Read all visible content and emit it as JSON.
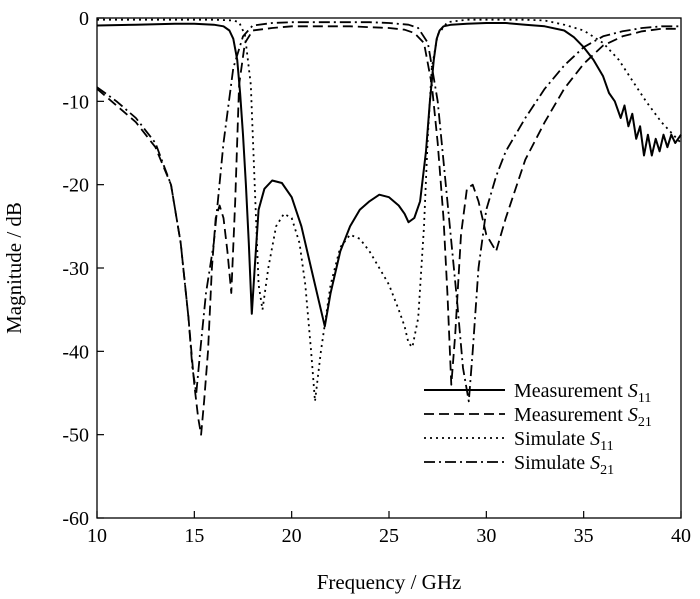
{
  "chart_data": {
    "type": "line",
    "xlabel": "Frequency / GHz",
    "ylabel": "Magnitude / dB",
    "xlim": [
      10,
      40
    ],
    "ylim": [
      -60,
      0
    ],
    "xticks": [
      "10",
      "15",
      "20",
      "25",
      "30",
      "35",
      "40"
    ],
    "yticks": [
      "0",
      "-10",
      "-20",
      "-30",
      "-40",
      "-50",
      "-60"
    ],
    "grid": false,
    "legend_position": "lower-right",
    "series": [
      {
        "name": "Measurement S11",
        "legend_text": "Measurement ",
        "legend_symbol": "S",
        "legend_sub": "11",
        "dash": "solid",
        "x": [
          10,
          12,
          14,
          15,
          16,
          16.5,
          16.8,
          17.0,
          17.2,
          17.35,
          17.5,
          17.65,
          17.8,
          17.95,
          18.1,
          18.3,
          18.6,
          19.0,
          19.5,
          20.0,
          20.5,
          21.0,
          21.4,
          21.7,
          22.0,
          22.5,
          23.0,
          23.5,
          24.0,
          24.5,
          25.0,
          25.5,
          25.8,
          26.0,
          26.3,
          26.6,
          26.9,
          27.1,
          27.3,
          27.45,
          27.6,
          27.8,
          28.2,
          29.0,
          30.0,
          31.0,
          32.0,
          33.0,
          34.0,
          34.5,
          35.0,
          35.5,
          36.0,
          36.3,
          36.6,
          36.9,
          37.1,
          37.3,
          37.5,
          37.7,
          37.9,
          38.1,
          38.3,
          38.5,
          38.7,
          38.9,
          39.1,
          39.3,
          39.5,
          39.7,
          40.0
        ],
        "y": [
          -0.9,
          -0.8,
          -0.7,
          -0.7,
          -0.8,
          -1.0,
          -1.5,
          -2.5,
          -5,
          -9,
          -14,
          -20,
          -27,
          -35.5,
          -30,
          -23,
          -20.5,
          -19.5,
          -19.8,
          -21.5,
          -25,
          -30,
          -34,
          -37,
          -33,
          -28,
          -25,
          -23,
          -22,
          -21.2,
          -21.5,
          -22.5,
          -23.5,
          -24.5,
          -24,
          -22,
          -16,
          -10,
          -5,
          -2.5,
          -1.5,
          -1.0,
          -0.8,
          -0.7,
          -0.6,
          -0.6,
          -0.8,
          -1.0,
          -1.5,
          -2.3,
          -3.5,
          -5,
          -7,
          -9,
          -10,
          -12,
          -10.5,
          -13,
          -11.5,
          -14.5,
          -13,
          -16.5,
          -14,
          -16.5,
          -14.5,
          -16,
          -14,
          -15.5,
          -14,
          -15,
          -14
        ]
      },
      {
        "name": "Measurement S21",
        "legend_text": "Measurement ",
        "legend_symbol": "S",
        "legend_sub": "21",
        "dash": "dashed",
        "x": [
          10,
          11,
          12,
          13,
          13.8,
          14.3,
          14.7,
          15.0,
          15.2,
          15.35,
          15.5,
          15.7,
          15.9,
          16.1,
          16.3,
          16.5,
          16.7,
          16.9,
          17.1,
          17.3,
          17.6,
          18.0,
          19.0,
          20.0,
          21.0,
          22.0,
          23.0,
          24.0,
          25.0,
          25.8,
          26.3,
          26.8,
          27.2,
          27.5,
          27.8,
          28.0,
          28.2,
          28.4,
          28.7,
          29.0,
          29.3,
          29.6,
          30.0,
          30.5,
          31.0,
          32.0,
          33.0,
          34.0,
          35.0,
          36.0,
          37.0,
          38.0,
          39.0,
          40.0
        ],
        "y": [
          -8.5,
          -10.5,
          -12.5,
          -15.5,
          -20,
          -27,
          -36,
          -44,
          -48,
          -50,
          -46,
          -40,
          -30,
          -24,
          -22.5,
          -24,
          -28,
          -33,
          -22,
          -8,
          -3,
          -1.5,
          -1.2,
          -1.0,
          -1.0,
          -1.0,
          -1.0,
          -1.1,
          -1.2,
          -1.4,
          -1.8,
          -3,
          -8,
          -15,
          -24,
          -33,
          -44,
          -38,
          -26,
          -20.5,
          -20,
          -22,
          -26,
          -28,
          -24,
          -17,
          -12.5,
          -8.5,
          -5.5,
          -3.3,
          -2.2,
          -1.6,
          -1.3,
          -1.3
        ]
      },
      {
        "name": "Simulate S11",
        "legend_text": "Simulate ",
        "legend_symbol": "S",
        "legend_sub": "11",
        "dash": "dotted",
        "x": [
          10,
          12,
          14,
          15,
          16,
          17,
          17.3,
          17.6,
          17.9,
          18.1,
          18.3,
          18.5,
          18.8,
          19.2,
          19.6,
          20.0,
          20.4,
          20.7,
          21.0,
          21.2,
          21.5,
          22.0,
          22.5,
          23.0,
          23.5,
          24.0,
          24.5,
          25.0,
          25.5,
          25.8,
          26.0,
          26.2,
          26.5,
          26.8,
          27.0,
          27.2,
          27.5,
          28.0,
          29.0,
          30.0,
          31.0,
          32.0,
          33.0,
          34.0,
          35.0,
          36.0,
          36.8,
          37.5,
          38.2,
          39.0,
          39.6,
          40.0
        ],
        "y": [
          -0.2,
          -0.2,
          -0.2,
          -0.2,
          -0.2,
          -0.3,
          -0.5,
          -2,
          -8,
          -20,
          -32,
          -35,
          -30,
          -25,
          -23.5,
          -24,
          -27,
          -32,
          -40,
          -46,
          -40,
          -32,
          -27.5,
          -26,
          -26.5,
          -28,
          -30,
          -32,
          -35,
          -37,
          -39,
          -39.5,
          -36,
          -25,
          -14,
          -6,
          -2,
          -0.5,
          -0.2,
          -0.2,
          -0.2,
          -0.2,
          -0.3,
          -0.8,
          -1.5,
          -3,
          -5,
          -7.5,
          -10,
          -12.5,
          -14,
          -15
        ]
      },
      {
        "name": "Simulate S21",
        "legend_text": "Simulate ",
        "legend_symbol": "S",
        "legend_sub": "21",
        "dash": "dashdot",
        "x": [
          10,
          11,
          12,
          13,
          13.8,
          14.3,
          14.7,
          14.9,
          15.1,
          15.3,
          15.6,
          16.0,
          16.5,
          17.0,
          17.5,
          18.0,
          19.0,
          20.0,
          21.0,
          22.0,
          23.0,
          24.0,
          25.0,
          26.0,
          26.5,
          27.0,
          27.5,
          28.0,
          28.5,
          28.8,
          29.1,
          29.3,
          29.6,
          30.0,
          30.5,
          31.0,
          32.0,
          33.0,
          34.0,
          35.0,
          36.0,
          37.0,
          38.0,
          39.0,
          40.0
        ],
        "y": [
          -8.3,
          -10,
          -12,
          -15,
          -20,
          -27,
          -36,
          -42,
          -45,
          -40,
          -33,
          -27,
          -15,
          -6,
          -2.2,
          -0.9,
          -0.6,
          -0.5,
          -0.5,
          -0.5,
          -0.5,
          -0.5,
          -0.6,
          -0.8,
          -1.2,
          -3,
          -10,
          -22,
          -34,
          -42,
          -46,
          -40,
          -30,
          -23,
          -19,
          -16,
          -12,
          -8.5,
          -5.7,
          -3.5,
          -2.2,
          -1.6,
          -1.2,
          -1.0,
          -1.0
        ]
      }
    ]
  }
}
